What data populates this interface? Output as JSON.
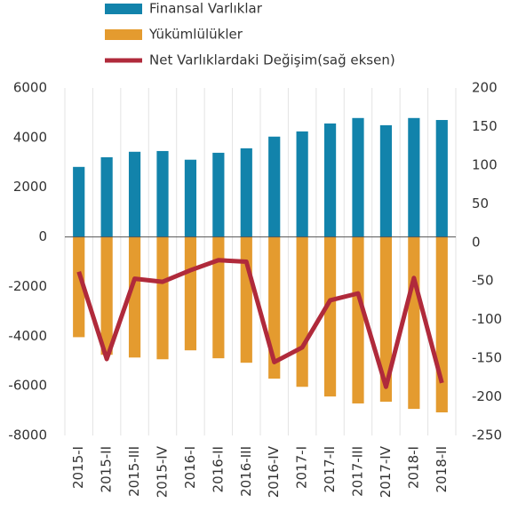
{
  "chart_data": {
    "type": "bar-line",
    "categories": [
      "2015-I",
      "2015-II",
      "2015-III",
      "2015-IV",
      "2016-I",
      "2016-II",
      "2016-III",
      "2016-IV",
      "2017-I",
      "2017-II",
      "2017-III",
      "2017-IV",
      "2018-I",
      "2018-II"
    ],
    "series": [
      {
        "name": "Finansal Varlıklar",
        "type": "bar",
        "color": "#1283ab",
        "values": [
          2820,
          3210,
          3430,
          3460,
          3110,
          3390,
          3570,
          4040,
          4250,
          4570,
          4790,
          4500,
          4790,
          4710
        ]
      },
      {
        "name": "Yükümlülükler",
        "type": "bar",
        "color": "#e49b2f",
        "values": [
          -4040,
          -4750,
          -4860,
          -4930,
          -4570,
          -4890,
          -5070,
          -5710,
          -6040,
          -6430,
          -6710,
          -6640,
          -6930,
          -7070
        ]
      },
      {
        "name": "Net Varlıklardaki Değişim(sağ eksen)",
        "type": "line",
        "axis": "y2",
        "color": "#b02a3b",
        "values": [
          -38,
          -151,
          -47,
          -51,
          -36,
          -23,
          -25,
          -155,
          -136,
          -75,
          -66,
          -187,
          -46,
          -182
        ]
      }
    ],
    "ylim": [
      -8000,
      6000
    ],
    "yticks": [
      -8000,
      -6000,
      -4000,
      -2000,
      0,
      2000,
      4000,
      6000
    ],
    "y2lim": [
      -250,
      200
    ],
    "y2ticks": [
      -250,
      -200,
      -150,
      -100,
      -50,
      0,
      50,
      100,
      150,
      200
    ]
  }
}
